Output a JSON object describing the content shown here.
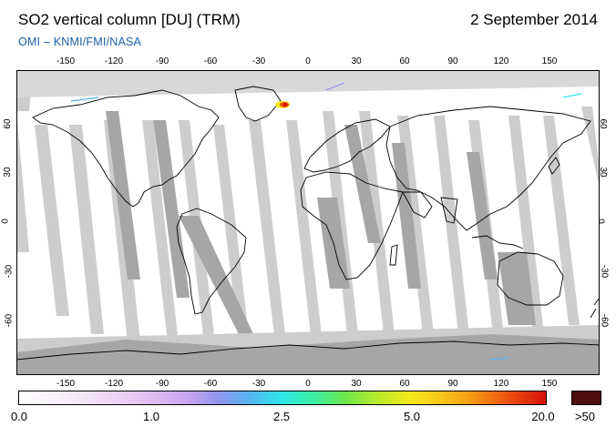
{
  "header": {
    "title": "SO2 vertical column [DU] (TRM)",
    "date": "2 September 2014",
    "subtitle": "OMI  –  KNMI/FMI/NASA"
  },
  "map": {
    "lon_ticks": [
      "-150",
      "-120",
      "-90",
      "-60",
      "-30",
      "0",
      "30",
      "60",
      "90",
      "120",
      "150"
    ],
    "lat_ticks": [
      "60",
      "30",
      "0",
      "-30",
      "-60"
    ],
    "colors": {
      "no_data_gray": "#c8c8c8",
      "swath_dark_gray": "#a4a4a4",
      "coastline": "#000000",
      "hotspot": "#d8100c"
    }
  },
  "colorbar": {
    "labels": [
      "0.0",
      "1.0",
      "2.5",
      "5.0",
      "20.0"
    ],
    "overflow_label": ">50",
    "overflow_color": "#4e0f0f"
  }
}
